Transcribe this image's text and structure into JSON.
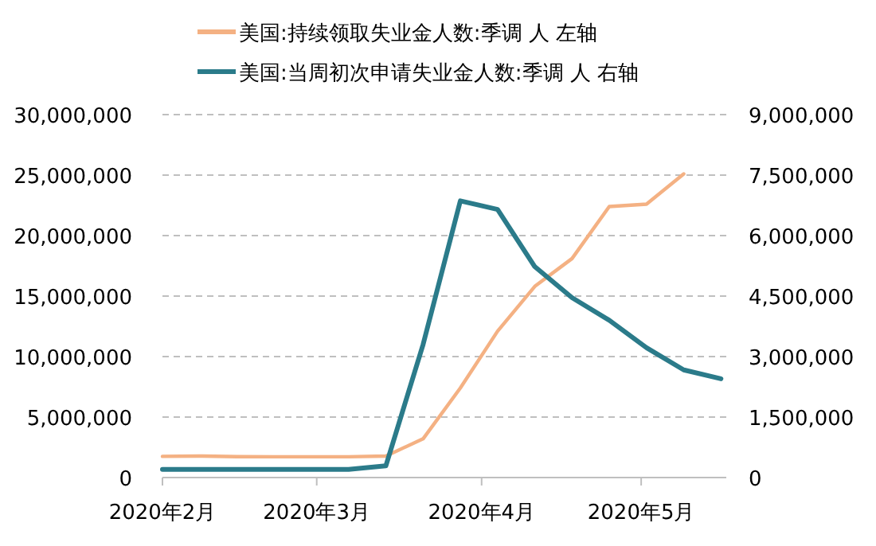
{
  "chart_data": {
    "type": "line",
    "x": [
      "2020-02-01",
      "2020-02-08",
      "2020-02-15",
      "2020-02-22",
      "2020-02-29",
      "2020-03-07",
      "2020-03-14",
      "2020-03-21",
      "2020-03-28",
      "2020-04-04",
      "2020-04-11",
      "2020-04-18",
      "2020-04-25",
      "2020-05-02",
      "2020-05-09",
      "2020-05-16"
    ],
    "series": [
      {
        "name": "美国:持续领取失业金人数:季调 人 左轴",
        "color": "#f4b183",
        "axis": "y",
        "values": [
          1750000,
          1780000,
          1730000,
          1720000,
          1720000,
          1720000,
          1780000,
          3200000,
          7400000,
          12100000,
          15800000,
          18100000,
          22400000,
          22600000,
          25100000,
          null
        ]
      },
      {
        "name": "美国:当周初次申请失业金人数:季调 人 右轴",
        "color": "#2b7b8a",
        "axis": "y2",
        "values": [
          200000,
          200000,
          200000,
          200000,
          200000,
          200000,
          290000,
          3300000,
          6860000,
          6650000,
          5230000,
          4460000,
          3900000,
          3220000,
          2670000,
          2450000
        ]
      }
    ],
    "xlim": [
      "2020-02-01",
      "2020-05-17"
    ],
    "xticks": [
      {
        "value": "2020-02-01",
        "label": "2020年2月"
      },
      {
        "value": "2020-03-01",
        "label": "2020年3月"
      },
      {
        "value": "2020-04-01",
        "label": "2020年4月"
      },
      {
        "value": "2020-05-01",
        "label": "2020年5月"
      }
    ],
    "ylim": [
      0,
      30000000
    ],
    "yticks": [
      {
        "value": 0,
        "label": "0"
      },
      {
        "value": 5000000,
        "label": "5,000,000"
      },
      {
        "value": 10000000,
        "label": "10,000,000"
      },
      {
        "value": 15000000,
        "label": "15,000,000"
      },
      {
        "value": 20000000,
        "label": "20,000,000"
      },
      {
        "value": 25000000,
        "label": "25,000,000"
      },
      {
        "value": 30000000,
        "label": "30,000,000"
      }
    ],
    "y2lim": [
      0,
      9000000
    ],
    "y2ticks": [
      {
        "value": 0,
        "label": "0"
      },
      {
        "value": 1500000,
        "label": "1,500,000"
      },
      {
        "value": 3000000,
        "label": "3,000,000"
      },
      {
        "value": 4500000,
        "label": "4,500,000"
      },
      {
        "value": 6000000,
        "label": "6,000,000"
      },
      {
        "value": 7500000,
        "label": "7,500,000"
      },
      {
        "value": 9000000,
        "label": "9,000,000"
      }
    ],
    "grid": "y",
    "legend": "top",
    "marker": "none",
    "line_style": "solid"
  }
}
